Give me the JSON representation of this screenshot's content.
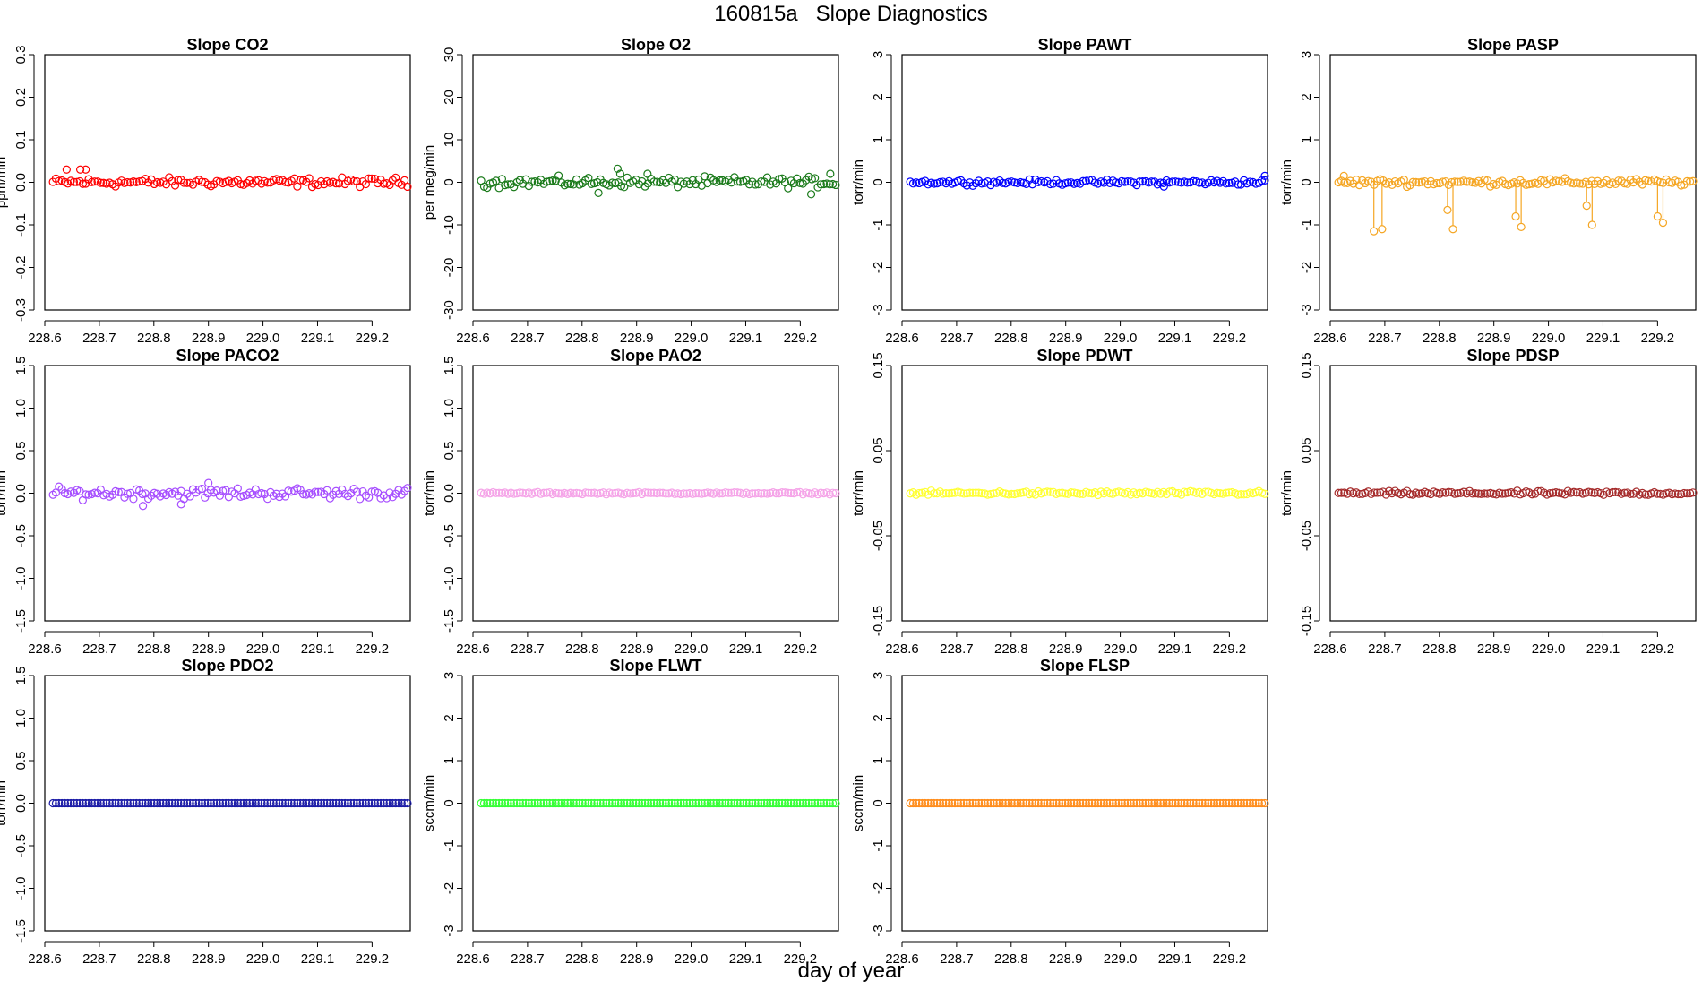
{
  "title": "160815a   Slope Diagnostics",
  "xlabel": "day of year",
  "chart_data": [
    {
      "type": "scatter",
      "title": "Slope CO2",
      "ylabel": "ppm/min",
      "color": "#ff0000",
      "xlim": [
        228.6,
        229.27
      ],
      "ylim": [
        -0.3,
        0.3
      ],
      "xticks": [
        "228.6",
        "228.7",
        "228.8",
        "228.9",
        "229.0",
        "229.1",
        "229.2"
      ],
      "yticks": [
        "-0.3",
        "-0.2",
        "-0.1",
        "0.0",
        "0.1",
        "0.2",
        "0.3"
      ],
      "x_range": [
        228.615,
        229.265
      ],
      "n_points": 120,
      "noise": 0.009,
      "outliers": [
        [
          228.64,
          0.03
        ],
        [
          228.665,
          0.03
        ],
        [
          228.675,
          0.03
        ]
      ]
    },
    {
      "type": "scatter",
      "title": "Slope O2",
      "ylabel": "per meg/min",
      "color": "#1a7a1a",
      "xlim": [
        228.6,
        229.27
      ],
      "ylim": [
        -30,
        30
      ],
      "xticks": [
        "228.6",
        "228.7",
        "228.8",
        "228.9",
        "229.0",
        "229.1",
        "229.2"
      ],
      "yticks": [
        "-30",
        "-20",
        "-10",
        "0",
        "10",
        "20",
        "30"
      ],
      "x_range": [
        228.615,
        229.265
      ],
      "n_points": 120,
      "noise": 1.0,
      "outliers": [
        [
          228.865,
          3.2
        ],
        [
          228.87,
          2.0
        ],
        [
          228.92,
          2.0
        ],
        [
          229.255,
          2.0
        ],
        [
          229.22,
          -2.8
        ],
        [
          228.83,
          -2.5
        ]
      ]
    },
    {
      "type": "scatter",
      "title": "Slope PAWT",
      "ylabel": "torr/min",
      "color": "#0000ff",
      "xlim": [
        228.6,
        229.27
      ],
      "ylim": [
        -3,
        3
      ],
      "xticks": [
        "228.6",
        "228.7",
        "228.8",
        "228.9",
        "229.0",
        "229.1",
        "229.2"
      ],
      "yticks": [
        "-3",
        "-2",
        "-1",
        "0",
        "1",
        "2",
        "3"
      ],
      "x_range": [
        228.615,
        229.265
      ],
      "n_points": 120,
      "noise": 0.05,
      "outliers": [
        [
          229.265,
          0.15
        ],
        [
          229.08,
          -0.1
        ]
      ]
    },
    {
      "type": "scatter",
      "title": "Slope PASP",
      "ylabel": "torr/min",
      "color": "#f5a623",
      "xlim": [
        228.6,
        229.27
      ],
      "ylim": [
        -3,
        3
      ],
      "xticks": [
        "228.6",
        "228.7",
        "228.8",
        "228.9",
        "229.0",
        "229.1",
        "229.2"
      ],
      "yticks": [
        "-3",
        "-2",
        "-1",
        "0",
        "1",
        "2",
        "3"
      ],
      "x_range": [
        228.615,
        229.265
      ],
      "n_points": 120,
      "noise": 0.07,
      "outliers": [
        [
          228.68,
          -1.15
        ],
        [
          228.695,
          -1.1
        ],
        [
          228.815,
          -0.65
        ],
        [
          228.825,
          -1.1
        ],
        [
          228.94,
          -0.8
        ],
        [
          228.95,
          -1.05
        ],
        [
          229.07,
          -0.55
        ],
        [
          229.08,
          -1.0
        ],
        [
          229.2,
          -0.8
        ],
        [
          229.21,
          -0.95
        ],
        [
          228.625,
          0.15
        ]
      ]
    },
    {
      "type": "scatter",
      "title": "Slope PACO2",
      "ylabel": "torr/min",
      "color": "#a64dff",
      "xlim": [
        228.6,
        229.27
      ],
      "ylim": [
        -1.5,
        1.5
      ],
      "xticks": [
        "228.6",
        "228.7",
        "228.8",
        "228.9",
        "229.0",
        "229.1",
        "229.2"
      ],
      "yticks": [
        "-1.5",
        "-1.0",
        "-0.5",
        "0.0",
        "0.5",
        "1.0",
        "1.5"
      ],
      "x_range": [
        228.615,
        229.265
      ],
      "n_points": 120,
      "noise": 0.055,
      "outliers": [
        [
          228.9,
          0.12
        ],
        [
          228.78,
          -0.15
        ],
        [
          228.85,
          -0.13
        ]
      ]
    },
    {
      "type": "scatter",
      "title": "Slope PAO2",
      "ylabel": "torr/min",
      "color": "#f5a3e8",
      "xlim": [
        228.6,
        229.27
      ],
      "ylim": [
        -1.5,
        1.5
      ],
      "xticks": [
        "228.6",
        "228.7",
        "228.8",
        "228.9",
        "229.0",
        "229.1",
        "229.2"
      ],
      "yticks": [
        "-1.5",
        "-1.0",
        "-0.5",
        "0.0",
        "0.5",
        "1.0",
        "1.5"
      ],
      "x_range": [
        228.615,
        229.265
      ],
      "n_points": 120,
      "noise": 0.01,
      "outliers": []
    },
    {
      "type": "scatter",
      "title": "Slope PDWT",
      "ylabel": "torr/min",
      "color": "#ffff33",
      "xlim": [
        228.6,
        229.27
      ],
      "ylim": [
        -0.15,
        0.15
      ],
      "xticks": [
        "228.6",
        "228.7",
        "228.8",
        "228.9",
        "229.0",
        "229.1",
        "229.2"
      ],
      "yticks": [
        "-0.15",
        "-0.05",
        "0.05",
        "0.15"
      ],
      "x_range": [
        228.615,
        229.265
      ],
      "n_points": 120,
      "noise": 0.002,
      "outliers": []
    },
    {
      "type": "scatter",
      "title": "Slope PDSP",
      "ylabel": "torr/min",
      "color": "#a52a2a",
      "xlim": [
        228.6,
        229.27
      ],
      "ylim": [
        -0.15,
        0.15
      ],
      "xticks": [
        "228.6",
        "228.7",
        "228.8",
        "228.9",
        "229.0",
        "229.1",
        "229.2"
      ],
      "yticks": [
        "-0.15",
        "-0.05",
        "0.05",
        "0.15"
      ],
      "x_range": [
        228.615,
        229.265
      ],
      "n_points": 120,
      "noise": 0.002,
      "outliers": []
    },
    {
      "type": "scatter",
      "title": "Slope PDO2",
      "ylabel": "torr/min",
      "color": "#1a1aa6",
      "xlim": [
        228.6,
        229.27
      ],
      "ylim": [
        -1.5,
        1.5
      ],
      "xticks": [
        "228.6",
        "228.7",
        "228.8",
        "228.9",
        "229.0",
        "229.1",
        "229.2"
      ],
      "yticks": [
        "-1.5",
        "-1.0",
        "-0.5",
        "0.0",
        "0.5",
        "1.0",
        "1.5"
      ],
      "x_range": [
        228.615,
        229.265
      ],
      "n_points": 120,
      "noise": 0.0,
      "outliers": []
    },
    {
      "type": "scatter",
      "title": "Slope FLWT",
      "ylabel": "sccm/min",
      "color": "#33ff33",
      "xlim": [
        228.6,
        229.27
      ],
      "ylim": [
        -3,
        3
      ],
      "xticks": [
        "228.6",
        "228.7",
        "228.8",
        "228.9",
        "229.0",
        "229.1",
        "229.2"
      ],
      "yticks": [
        "-3",
        "-2",
        "-1",
        "0",
        "1",
        "2",
        "3"
      ],
      "x_range": [
        228.615,
        229.265
      ],
      "n_points": 120,
      "noise": 0.0,
      "outliers": []
    },
    {
      "type": "scatter",
      "title": "Slope FLSP",
      "ylabel": "sccm/min",
      "color": "#ff8c1a",
      "xlim": [
        228.6,
        229.27
      ],
      "ylim": [
        -3,
        3
      ],
      "xticks": [
        "228.6",
        "228.7",
        "228.8",
        "228.9",
        "229.0",
        "229.1",
        "229.2"
      ],
      "yticks": [
        "-3",
        "-2",
        "-1",
        "0",
        "1",
        "2",
        "3"
      ],
      "x_range": [
        228.615,
        229.265
      ],
      "n_points": 120,
      "noise": 0.0,
      "outliers": []
    }
  ]
}
